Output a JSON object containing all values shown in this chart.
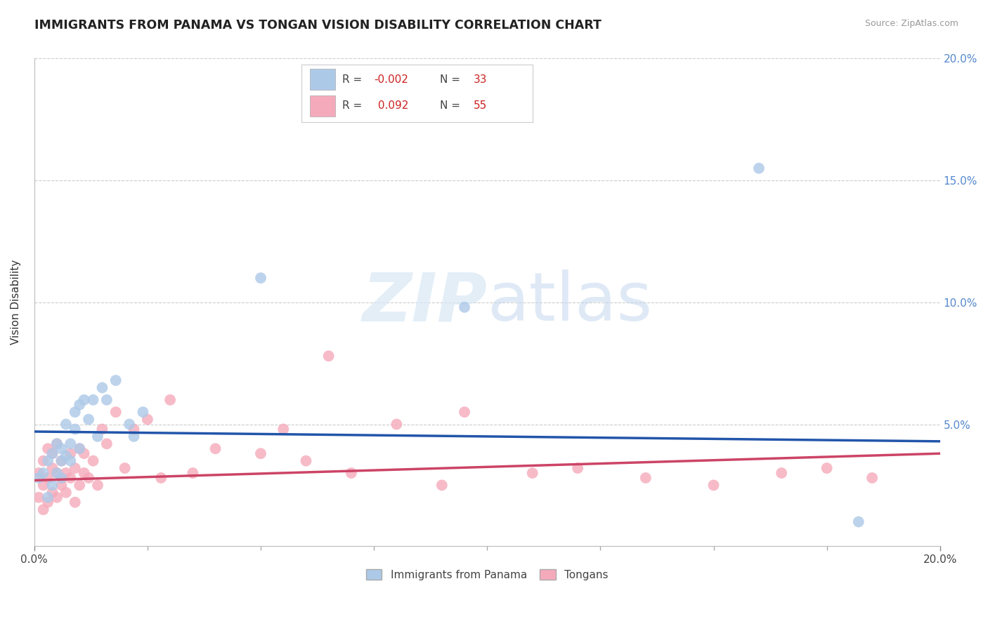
{
  "title": "IMMIGRANTS FROM PANAMA VS TONGAN VISION DISABILITY CORRELATION CHART",
  "source": "Source: ZipAtlas.com",
  "ylabel": "Vision Disability",
  "xlim": [
    0.0,
    0.2
  ],
  "ylim": [
    0.0,
    0.2
  ],
  "legend_label1": "Immigrants from Panama",
  "legend_label2": "Tongans",
  "r1": "-0.002",
  "n1": "33",
  "r2": "0.092",
  "n2": "55",
  "color1": "#adc9e8",
  "color2": "#f5aabb",
  "line_color1": "#2255aa",
  "line_color2": "#cc4466",
  "watermark_zip": "ZIP",
  "watermark_atlas": "atlas",
  "panama_x": [
    0.001,
    0.002,
    0.003,
    0.003,
    0.004,
    0.004,
    0.005,
    0.005,
    0.006,
    0.006,
    0.006,
    0.007,
    0.007,
    0.008,
    0.008,
    0.009,
    0.009,
    0.01,
    0.01,
    0.011,
    0.012,
    0.013,
    0.014,
    0.015,
    0.016,
    0.018,
    0.021,
    0.022,
    0.024,
    0.05,
    0.095,
    0.16,
    0.182
  ],
  "panama_y": [
    0.028,
    0.03,
    0.035,
    0.02,
    0.025,
    0.038,
    0.03,
    0.042,
    0.035,
    0.028,
    0.04,
    0.037,
    0.05,
    0.042,
    0.035,
    0.055,
    0.048,
    0.058,
    0.04,
    0.06,
    0.052,
    0.06,
    0.045,
    0.065,
    0.06,
    0.068,
    0.05,
    0.045,
    0.055,
    0.11,
    0.098,
    0.155,
    0.01
  ],
  "tongan_x": [
    0.001,
    0.001,
    0.002,
    0.002,
    0.002,
    0.003,
    0.003,
    0.003,
    0.004,
    0.004,
    0.004,
    0.005,
    0.005,
    0.005,
    0.006,
    0.006,
    0.006,
    0.007,
    0.007,
    0.008,
    0.008,
    0.009,
    0.009,
    0.01,
    0.01,
    0.011,
    0.011,
    0.012,
    0.013,
    0.014,
    0.015,
    0.016,
    0.018,
    0.02,
    0.022,
    0.025,
    0.028,
    0.03,
    0.035,
    0.04,
    0.05,
    0.055,
    0.06,
    0.065,
    0.07,
    0.08,
    0.09,
    0.095,
    0.11,
    0.12,
    0.135,
    0.15,
    0.165,
    0.175,
    0.185
  ],
  "tongan_y": [
    0.02,
    0.03,
    0.015,
    0.025,
    0.035,
    0.018,
    0.028,
    0.04,
    0.022,
    0.032,
    0.038,
    0.02,
    0.03,
    0.042,
    0.025,
    0.035,
    0.028,
    0.03,
    0.022,
    0.038,
    0.028,
    0.032,
    0.018,
    0.025,
    0.04,
    0.03,
    0.038,
    0.028,
    0.035,
    0.025,
    0.048,
    0.042,
    0.055,
    0.032,
    0.048,
    0.052,
    0.028,
    0.06,
    0.03,
    0.04,
    0.038,
    0.048,
    0.035,
    0.078,
    0.03,
    0.05,
    0.025,
    0.055,
    0.03,
    0.032,
    0.028,
    0.025,
    0.03,
    0.032,
    0.028
  ],
  "panama_line_x": [
    0.0,
    0.2
  ],
  "panama_line_y": [
    0.047,
    0.043
  ],
  "tongan_line_x": [
    0.0,
    0.2
  ],
  "tongan_line_y": [
    0.027,
    0.038
  ]
}
